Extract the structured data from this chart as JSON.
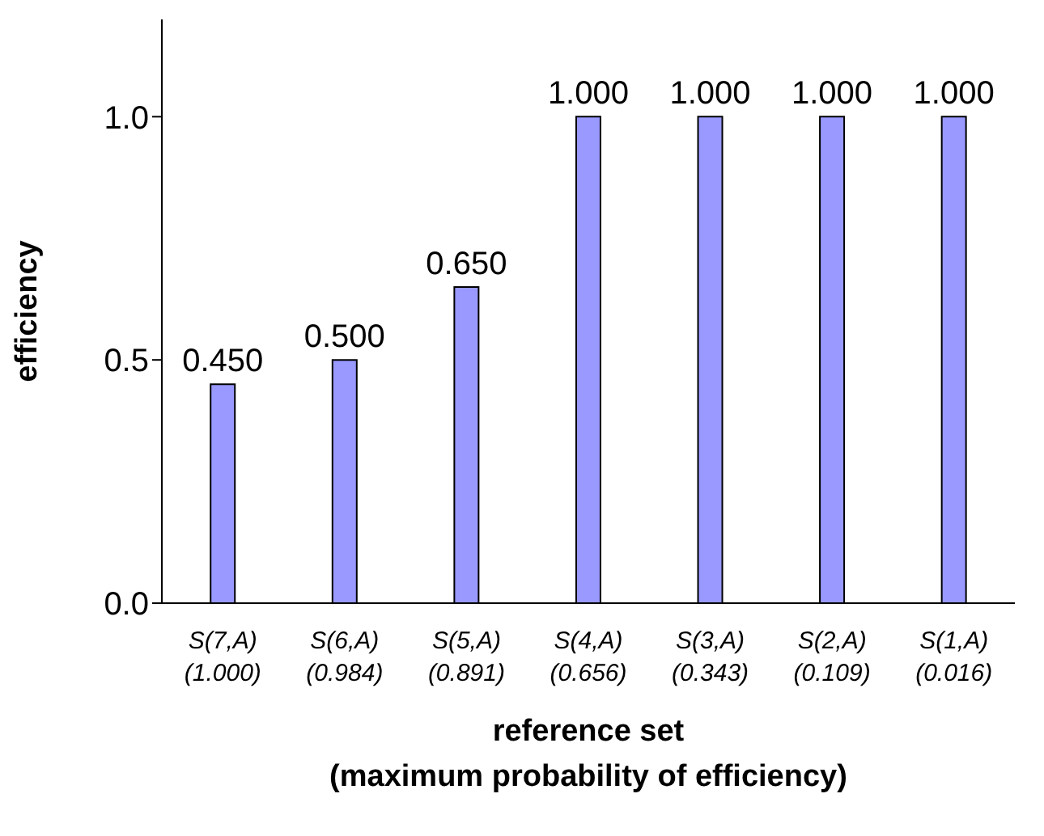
{
  "chart_data": {
    "type": "bar",
    "xlabel": "reference set\n(maximum probability of efficiency)",
    "ylabel": "efficiency",
    "categories": [
      "S(7,A)\n(1.000)",
      "S(6,A)\n(0.984)",
      "S(5,A)\n(0.891)",
      "S(4,A)\n(0.656)",
      "S(3,A)\n(0.343)",
      "S(2,A)\n(0.109)",
      "S(1,A)\n(0.016)"
    ],
    "values": [
      0.45,
      0.5,
      0.65,
      1.0,
      1.0,
      1.0,
      1.0
    ],
    "value_labels": [
      "0.450",
      "0.500",
      "0.650",
      "1.000",
      "1.000",
      "1.000",
      "1.000"
    ],
    "color": "#9999ff",
    "ylim": [
      0,
      1.2
    ],
    "yticks": [
      {
        "value": 0,
        "label": "0.0"
      },
      {
        "value": 0.5,
        "label": "0.5"
      },
      {
        "value": 1,
        "label": "1.0"
      }
    ],
    "grid": false,
    "legend": false
  }
}
